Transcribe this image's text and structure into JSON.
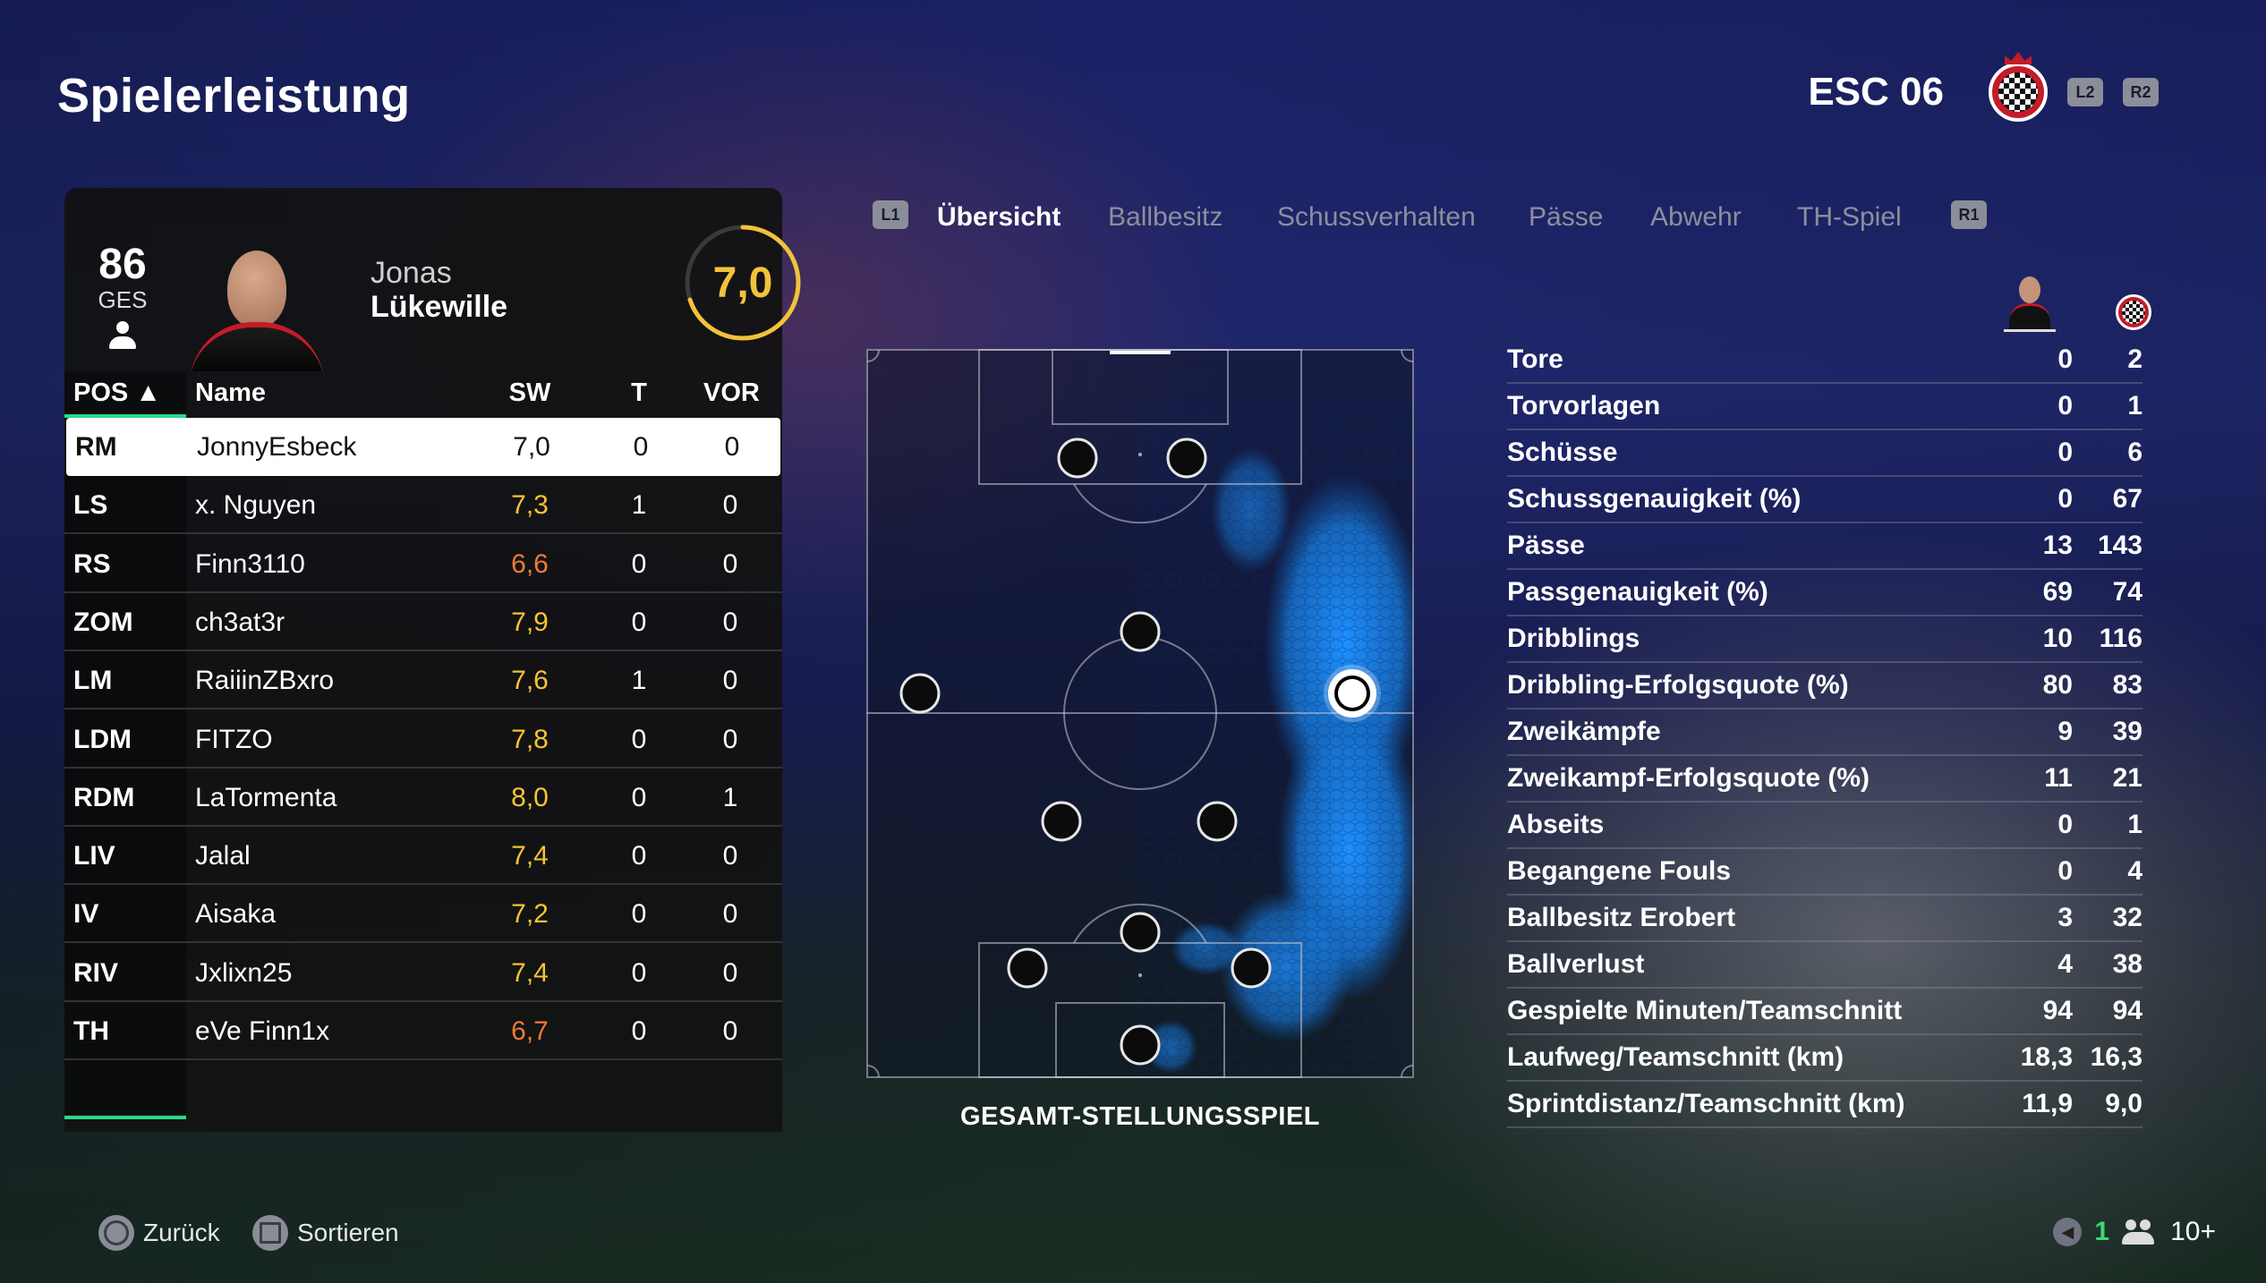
{
  "page_title": "Spielerleistung",
  "team": {
    "name": "ESC 06",
    "accent": "#c41c28",
    "buttons": [
      "L2",
      "R2"
    ]
  },
  "player": {
    "overall": "86",
    "overall_label": "GES",
    "first_name": "Jonas",
    "last_name": "Lükewille",
    "rating": "7,0",
    "rating_fraction": 0.7,
    "rating_color": "#f2c23a"
  },
  "table": {
    "headers": {
      "pos": "POS ▲",
      "name": "Name",
      "sw": "SW",
      "t": "T",
      "vor": "VOR"
    },
    "rows": [
      {
        "pos": "RM",
        "name": "JonnyEsbeck",
        "sw": "7,0",
        "t": "0",
        "vor": "0",
        "sw_tone": "dark"
      },
      {
        "pos": "LS",
        "name": "x. Nguyen",
        "sw": "7,3",
        "t": "1",
        "vor": "0",
        "sw_tone": "gold"
      },
      {
        "pos": "RS",
        "name": "Finn3110",
        "sw": "6,6",
        "t": "0",
        "vor": "0",
        "sw_tone": "red"
      },
      {
        "pos": "ZOM",
        "name": "ch3at3r",
        "sw": "7,9",
        "t": "0",
        "vor": "0",
        "sw_tone": "gold"
      },
      {
        "pos": "LM",
        "name": "RaiiinZBxro",
        "sw": "7,6",
        "t": "1",
        "vor": "0",
        "sw_tone": "gold"
      },
      {
        "pos": "LDM",
        "name": "FITZO",
        "sw": "7,8",
        "t": "0",
        "vor": "0",
        "sw_tone": "gold"
      },
      {
        "pos": "RDM",
        "name": "LaTormenta",
        "sw": "8,0",
        "t": "0",
        "vor": "1",
        "sw_tone": "gold"
      },
      {
        "pos": "LIV",
        "name": "Jalal",
        "sw": "7,4",
        "t": "0",
        "vor": "0",
        "sw_tone": "gold"
      },
      {
        "pos": "IV",
        "name": "Aisaka",
        "sw": "7,2",
        "t": "0",
        "vor": "0",
        "sw_tone": "gold"
      },
      {
        "pos": "RIV",
        "name": "Jxlixn25",
        "sw": "7,4",
        "t": "0",
        "vor": "0",
        "sw_tone": "gold"
      },
      {
        "pos": "TH",
        "name": "eVe Finn1x",
        "sw": "6,7",
        "t": "0",
        "vor": "0",
        "sw_tone": "red"
      }
    ]
  },
  "tabs": {
    "left_button": "L1",
    "right_button": "R1",
    "items": [
      "Übersicht",
      "Ballbesitz",
      "Schussverhalten",
      "Pässe",
      "Abwehr",
      "TH-Spiel"
    ],
    "active": "Übersicht"
  },
  "pitch": {
    "label": "GESAMT-STELLUNGSSPIEL",
    "heat_color": "#1e90ff"
  },
  "stats": [
    {
      "label": "Tore",
      "player": "0",
      "team": "2"
    },
    {
      "label": "Torvorlagen",
      "player": "0",
      "team": "1"
    },
    {
      "label": "Schüsse",
      "player": "0",
      "team": "6"
    },
    {
      "label": "Schussgenauigkeit (%)",
      "player": "0",
      "team": "67"
    },
    {
      "label": "Pässe",
      "player": "13",
      "team": "143"
    },
    {
      "label": "Passgenauigkeit (%)",
      "player": "69",
      "team": "74"
    },
    {
      "label": "Dribblings",
      "player": "10",
      "team": "116"
    },
    {
      "label": "Dribbling-Erfolgsquote (%)",
      "player": "80",
      "team": "83"
    },
    {
      "label": "Zweikämpfe",
      "player": "9",
      "team": "39"
    },
    {
      "label": "Zweikampf-Erfolgsquote (%)",
      "player": "11",
      "team": "21"
    },
    {
      "label": "Abseits",
      "player": "0",
      "team": "1"
    },
    {
      "label": "Begangene Fouls",
      "player": "0",
      "team": "4"
    },
    {
      "label": "Ballbesitz Erobert",
      "player": "3",
      "team": "32"
    },
    {
      "label": "Ballverlust",
      "player": "4",
      "team": "38"
    },
    {
      "label": "Gespielte Minuten/Teamschnitt",
      "player": "94",
      "team": "94"
    },
    {
      "label": "Laufweg/Teamschnitt (km)",
      "player": "18,3",
      "team": "16,3"
    },
    {
      "label": "Sprintdistanz/Teamschnitt (km)",
      "player": "11,9",
      "team": "9,0"
    }
  ],
  "footer": {
    "back_label": "Zurück",
    "sort_label": "Sortieren",
    "mic_count": "1",
    "players_count": "10+"
  }
}
